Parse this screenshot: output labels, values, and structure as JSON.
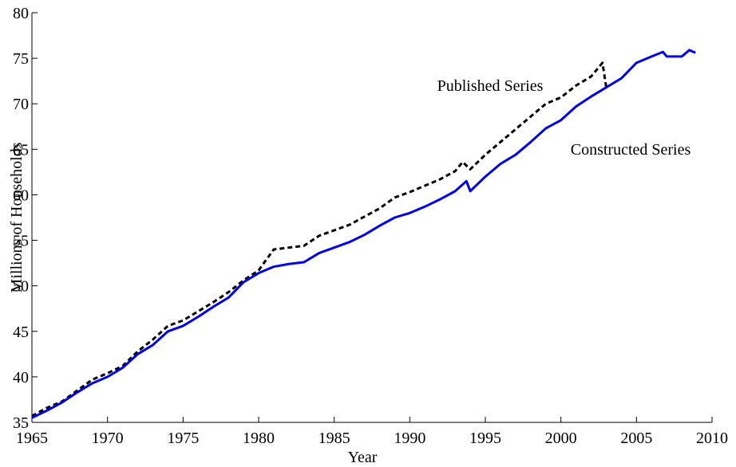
{
  "chart_data": {
    "type": "line",
    "xlabel": "Year",
    "ylabel": "Millions of Households",
    "annotations": [
      "Published Series",
      "Constructed Series"
    ],
    "xlim": [
      1965,
      2010
    ],
    "xticks": [
      1965,
      1970,
      1975,
      1980,
      1985,
      1990,
      1995,
      2000,
      2005,
      2010
    ],
    "ylim": [
      35,
      80
    ],
    "yticks": [
      35,
      40,
      45,
      50,
      55,
      60,
      65,
      70,
      75,
      80
    ],
    "grid": false,
    "series": [
      {
        "name": "Published Series",
        "color": "#000000",
        "dashed": true,
        "x": [
          1965,
          1966,
          1967,
          1968,
          1969,
          1970,
          1971,
          1972,
          1973,
          1974,
          1975,
          1976,
          1977,
          1978,
          1979,
          1980,
          1981,
          1982,
          1983,
          1984,
          1985,
          1986,
          1987,
          1988,
          1989,
          1990,
          1991,
          1992,
          1993,
          1993.5,
          1994,
          1995,
          1996,
          1997,
          1998,
          1999,
          2000,
          2001,
          2002,
          2002.75,
          2003
        ],
        "values": [
          35.7,
          36.6,
          37.3,
          38.5,
          39.7,
          40.4,
          41.2,
          42.8,
          44.1,
          45.6,
          46.2,
          47.2,
          48.2,
          49.3,
          50.6,
          51.7,
          54.0,
          54.2,
          54.4,
          55.5,
          56.1,
          56.7,
          57.6,
          58.5,
          59.7,
          60.3,
          61.0,
          61.7,
          62.6,
          63.6,
          62.8,
          64.4,
          65.8,
          67.2,
          68.6,
          70.0,
          70.7,
          72.0,
          73.0,
          74.5,
          71.8
        ]
      },
      {
        "name": "Constructed Series",
        "color": "#0000ee",
        "dashed": false,
        "x": [
          1965,
          1966,
          1967,
          1968,
          1969,
          1970,
          1971,
          1972,
          1973,
          1974,
          1975,
          1976,
          1977,
          1978,
          1979,
          1980,
          1981,
          1982,
          1983,
          1984,
          1985,
          1986,
          1987,
          1988,
          1989,
          1990,
          1991,
          1992,
          1993,
          1993.75,
          1994,
          1995,
          1996,
          1997,
          1998,
          1999,
          2000,
          2001,
          2002,
          2003,
          2004,
          2005,
          2006,
          2006.75,
          2007,
          2008,
          2008.5,
          2008.9
        ],
        "values": [
          35.5,
          36.3,
          37.2,
          38.3,
          39.3,
          40.0,
          41.0,
          42.5,
          43.5,
          45.0,
          45.6,
          46.6,
          47.7,
          48.7,
          50.4,
          51.4,
          52.1,
          52.4,
          52.6,
          53.6,
          54.2,
          54.8,
          55.6,
          56.6,
          57.5,
          58.0,
          58.7,
          59.5,
          60.4,
          61.5,
          60.4,
          62.0,
          63.4,
          64.4,
          65.8,
          67.3,
          68.2,
          69.7,
          70.8,
          71.8,
          72.8,
          74.5,
          75.2,
          75.7,
          75.2,
          75.2,
          75.9,
          75.6
        ]
      }
    ]
  }
}
